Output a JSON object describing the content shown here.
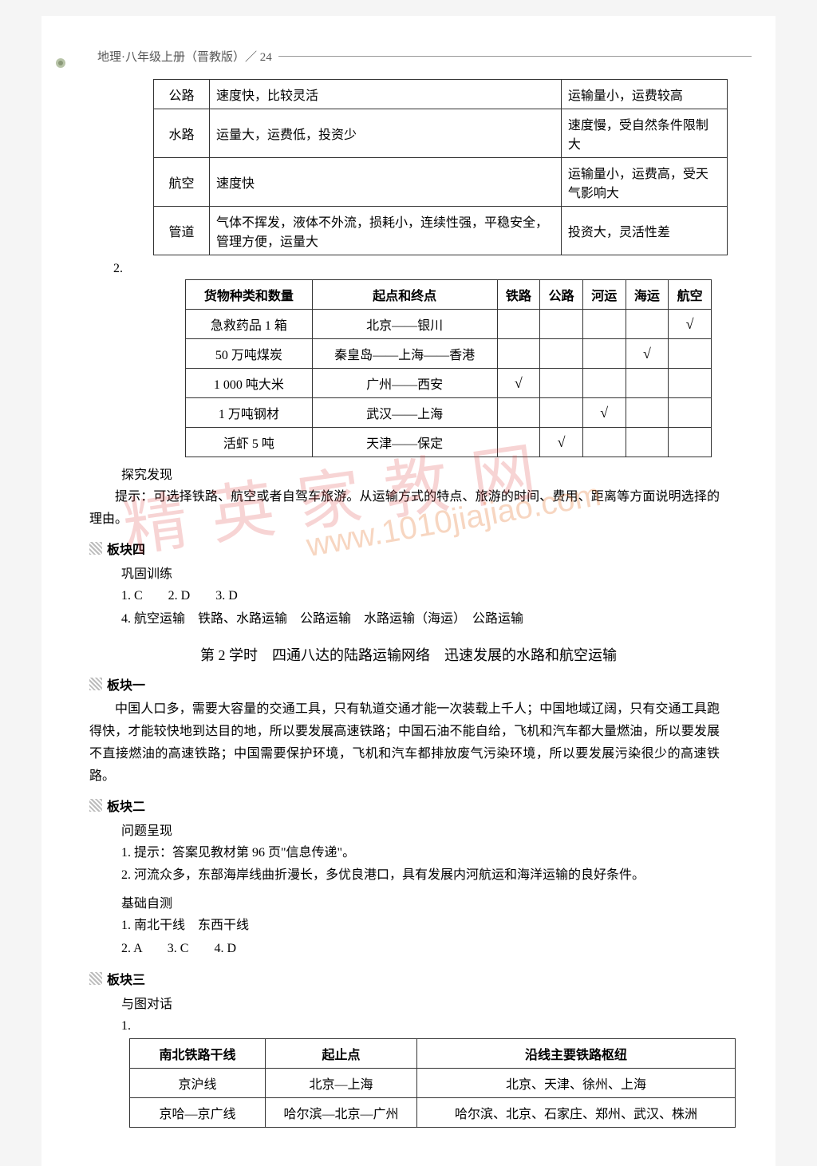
{
  "header": {
    "text": "地理·八年级上册（晋教版）／ 24"
  },
  "table1": {
    "rows": [
      [
        "公路",
        "速度快，比较灵活",
        "运输量小，运费较高"
      ],
      [
        "水路",
        "运量大，运费低，投资少",
        "速度慢，受自然条件限制大"
      ],
      [
        "航空",
        "速度快",
        "运输量小，运费高，受天气影响大"
      ],
      [
        "管道",
        "气体不挥发，液体不外流，损耗小，连续性强，平稳安全，管理方便，运量大",
        "投资大，灵活性差"
      ]
    ]
  },
  "marker2": "2.",
  "table2": {
    "headers": [
      "货物种类和数量",
      "起点和终点",
      "铁路",
      "公路",
      "河运",
      "海运",
      "航空"
    ],
    "rows": [
      [
        "急救药品 1 箱",
        "北京——银川",
        "",
        "",
        "",
        "",
        "√"
      ],
      [
        "50 万吨煤炭",
        "秦皇岛——上海——香港",
        "",
        "",
        "",
        "√",
        ""
      ],
      [
        "1 000 吨大米",
        "广州——西安",
        "√",
        "",
        "",
        "",
        ""
      ],
      [
        "1 万吨钢材",
        "武汉——上海",
        "",
        "",
        "√",
        "",
        ""
      ],
      [
        "活虾 5 吨",
        "天津——保定",
        "",
        "√",
        "",
        "",
        ""
      ]
    ]
  },
  "tanjiu_title": "探究发现",
  "tanjiu_text": "提示：可选择铁路、航空或者自驾车旅游。从运输方式的特点、旅游的时间、费用、距离等方面说明选择的理由。",
  "bankuai4": "板块四",
  "gonggu": "巩固训练",
  "ans_line1": "1. C　　2. D　　3. D",
  "ans_line2": "4. 航空运输　铁路、水路运输　公路运输　水路运输（海运）　公路运输",
  "lesson_title": "第 2 学时　四通八达的陆路运输网络　迅速发展的水路和航空运输",
  "bankuai1": "板块一",
  "bankuai1_text": "中国人口多，需要大容量的交通工具，只有轨道交通才能一次装载上千人；中国地域辽阔，只有交通工具跑得快，才能较快地到达目的地，所以要发展高速铁路；中国石油不能自给，飞机和汽车都大量燃油，所以要发展不直接燃油的高速铁路；中国需要保护环境，飞机和汽车都排放废气污染环境，所以要发展污染很少的高速铁路。",
  "bankuai2": "板块二",
  "wenti": "问题呈现",
  "b2_l1": "1. 提示：答案见教材第 96 页\"信息传递\"。",
  "b2_l2": "2. 河流众多，东部海岸线曲折漫长，多优良港口，具有发展内河航运和海洋运输的良好条件。",
  "jichu": "基础自测",
  "b2_l3": "1. 南北干线　东西干线",
  "b2_l4": "2. A　　3. C　　4. D",
  "bankuai3": "板块三",
  "yutu": "与图对话",
  "marker1": "1.",
  "table3": {
    "headers": [
      "南北铁路干线",
      "起止点",
      "沿线主要铁路枢纽"
    ],
    "rows": [
      [
        "京沪线",
        "北京—上海",
        "北京、天津、徐州、上海"
      ],
      [
        "京哈—京广线",
        "哈尔滨—北京—广州",
        "哈尔滨、北京、石家庄、郑州、武汉、株洲"
      ]
    ]
  },
  "watermark_text": "精英家教网",
  "watermark_url": "www.1010jiajiao.com"
}
